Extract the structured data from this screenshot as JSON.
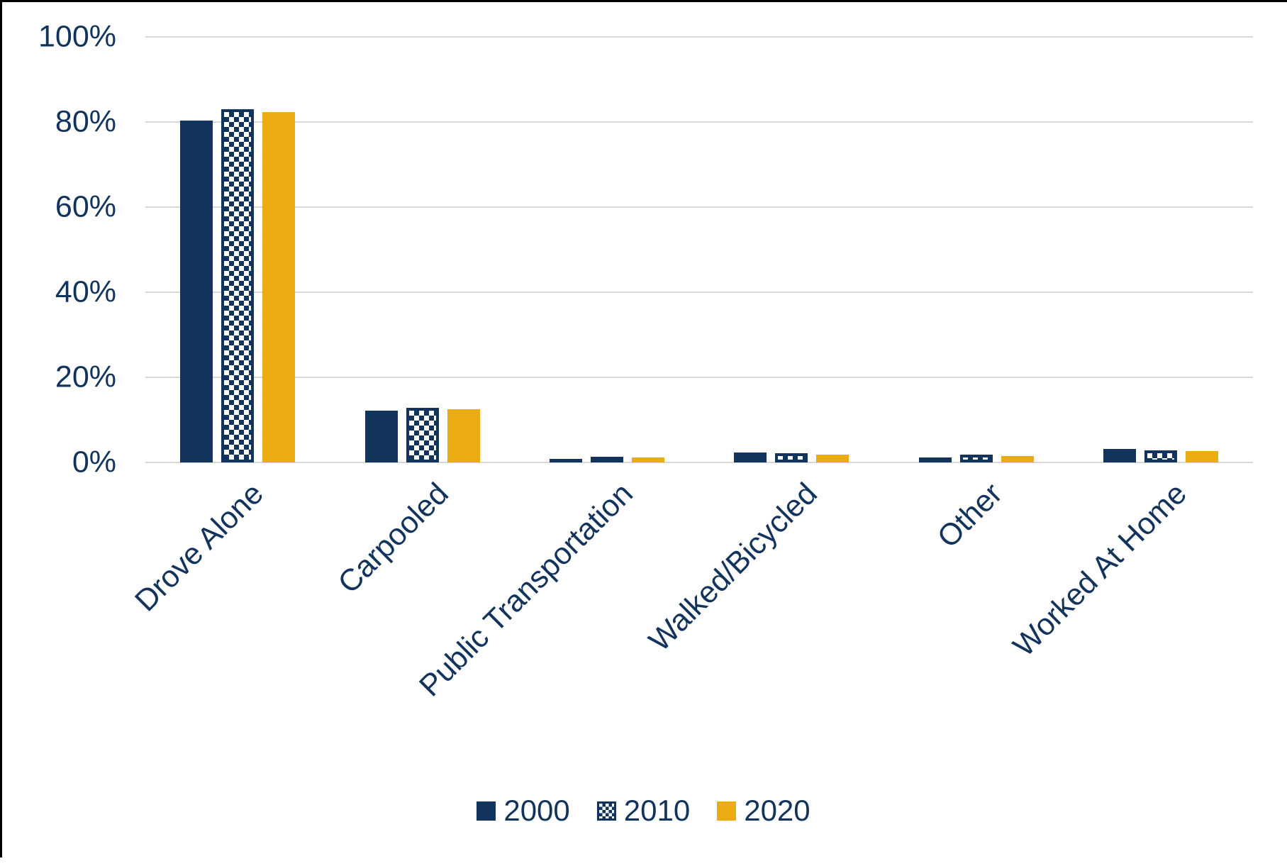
{
  "chart_data": {
    "type": "bar",
    "title": "",
    "xlabel": "",
    "ylabel": "",
    "categories": [
      "Drove Alone",
      "Carpooled",
      "Public Transportation",
      "Walked/Bicycled",
      "Other",
      "Worked At Home"
    ],
    "series": [
      {
        "name": "2000",
        "style": "solid-navy",
        "values": [
          80.4,
          12.1,
          0.8,
          2.3,
          1.2,
          3.2
        ]
      },
      {
        "name": "2010",
        "style": "checker",
        "values": [
          83.0,
          12.8,
          1.4,
          2.1,
          1.8,
          2.9
        ]
      },
      {
        "name": "2020",
        "style": "solid-gold",
        "values": [
          82.4,
          12.5,
          1.1,
          1.9,
          1.5,
          2.6
        ]
      }
    ],
    "ylim": [
      0,
      100
    ],
    "yticks": [
      {
        "value": 0,
        "label": "0%"
      },
      {
        "value": 20,
        "label": "20%"
      },
      {
        "value": 40,
        "label": "40%"
      },
      {
        "value": 60,
        "label": "60%"
      },
      {
        "value": 80,
        "label": "80%"
      },
      {
        "value": 100,
        "label": "100%"
      }
    ],
    "grid": true,
    "legend_position": "bottom"
  },
  "colors": {
    "navy": "#12335c",
    "gold": "#eaac12",
    "text": "#12335c",
    "gridline": "#d8d8d8",
    "frame": "#000000"
  }
}
